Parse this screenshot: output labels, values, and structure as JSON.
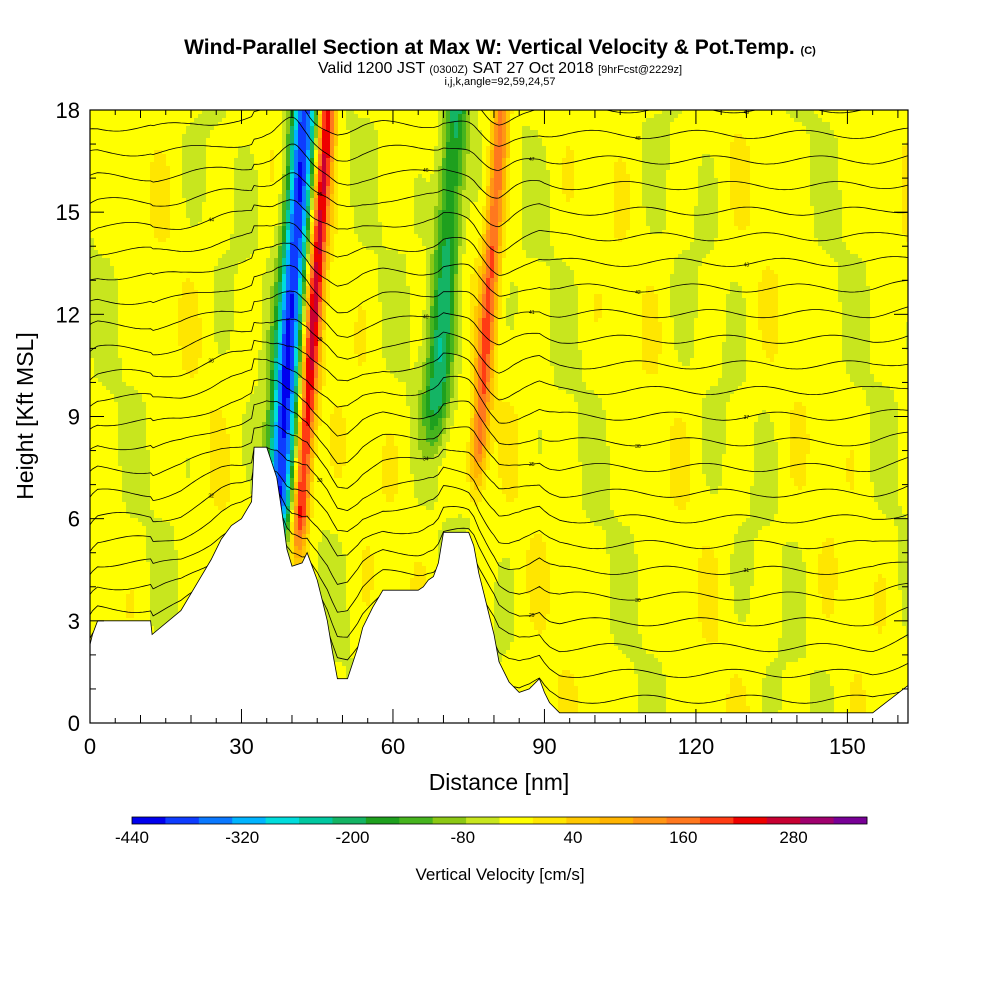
{
  "title": {
    "main": "Wind-Parallel Section at Max W: Vertical Velocity & Pot.Temp.",
    "copyright": "(C)",
    "valid_prefix": "Valid 1200 JST",
    "valid_utc": "(0300Z)",
    "valid_date": "SAT 27 Oct 2018",
    "forecast": "[9hrFcst@2229z]",
    "indices": "i,j,k,angle=92,59,24,57"
  },
  "chart_data": {
    "type": "heatmap",
    "xlabel": "Distance [nm]",
    "ylabel": "Height [Kft MSL]",
    "xlim": [
      0,
      162
    ],
    "ylim": [
      0,
      18
    ],
    "xticks": [
      0,
      30,
      60,
      90,
      120,
      150
    ],
    "yticks": [
      0,
      3,
      6,
      9,
      12,
      15,
      18
    ],
    "colorbar": {
      "title": "Vertical Velocity [cm/s]",
      "tick_labels": [
        "-440",
        "-320",
        "-200",
        "-80",
        "40",
        "160",
        "280"
      ],
      "tick_values": [
        -440,
        -320,
        -200,
        -80,
        40,
        160,
        280
      ],
      "range": [
        -440,
        360
      ],
      "step": 40,
      "colors": [
        "#0000ee",
        "#0e3cff",
        "#0a78ff",
        "#00b4ff",
        "#00dcdc",
        "#00c8a0",
        "#14b464",
        "#1ea01e",
        "#46b41e",
        "#8cc814",
        "#c8e61e",
        "#ffff00",
        "#ffe600",
        "#ffc800",
        "#ffb400",
        "#ff9614",
        "#ff781e",
        "#ff3c14",
        "#ee0000",
        "#c80032",
        "#a0006e",
        "#780096"
      ]
    },
    "velocity_features": [
      {
        "kind": "downdraft",
        "center_x": 38,
        "peak": -420,
        "top": 18,
        "bottom": 4.9
      },
      {
        "kind": "updraft",
        "center_x": 42.5,
        "peak": 320,
        "top": 18,
        "bottom": 4.6
      },
      {
        "kind": "downdraft",
        "center_x": 68,
        "peak": -200,
        "top": 18,
        "bottom": 8
      },
      {
        "kind": "updraft",
        "center_x": 77,
        "peak": 220,
        "top": 18,
        "bottom": 6.5
      }
    ],
    "terrain": {
      "x": [
        0,
        0.5,
        1.5,
        4,
        12,
        12.3,
        18,
        20,
        22,
        24,
        26,
        28,
        30,
        32,
        32.5,
        35,
        37,
        38,
        39,
        40,
        42,
        43,
        45,
        46,
        47,
        48,
        49,
        51,
        53,
        54,
        56,
        58,
        60,
        61,
        62,
        63,
        64,
        65,
        66,
        67,
        68,
        69,
        70,
        71,
        72,
        73,
        74,
        75,
        76,
        77,
        78,
        79,
        80,
        81,
        83,
        85,
        87,
        89,
        90,
        91,
        93,
        95,
        97,
        100,
        110,
        120,
        130,
        135,
        140,
        145,
        150,
        155,
        162
      ],
      "y": [
        2.3,
        2.6,
        3.0,
        3.0,
        3.0,
        2.6,
        3.3,
        3.8,
        4.3,
        4.8,
        5.4,
        5.8,
        6.0,
        6.5,
        8.1,
        8.1,
        7.2,
        6.2,
        5.1,
        4.6,
        4.7,
        5.0,
        4.2,
        3.6,
        3.0,
        2.1,
        1.3,
        1.3,
        2.2,
        2.8,
        3.4,
        3.9,
        3.9,
        3.9,
        3.9,
        3.9,
        3.9,
        3.9,
        4.0,
        4.2,
        4.3,
        4.7,
        5.6,
        5.6,
        5.6,
        5.6,
        5.6,
        5.6,
        5.2,
        4.4,
        3.8,
        3.2,
        2.6,
        1.8,
        1.2,
        0.9,
        1.0,
        1.3,
        0.9,
        0.6,
        0.3,
        0.3,
        0.3,
        0.3,
        0.3,
        0.3,
        0.3,
        0.3,
        0.3,
        0.3,
        0.3,
        0.3,
        1.1
      ]
    },
    "isentrope_labels": [
      "26",
      "27",
      "28",
      "29",
      "30",
      "31",
      "32",
      "33",
      "34",
      "35",
      "36",
      "37",
      "38",
      "39",
      "40",
      "41",
      "42",
      "43",
      "44",
      "45",
      "46",
      "47",
      "48",
      "49"
    ]
  }
}
